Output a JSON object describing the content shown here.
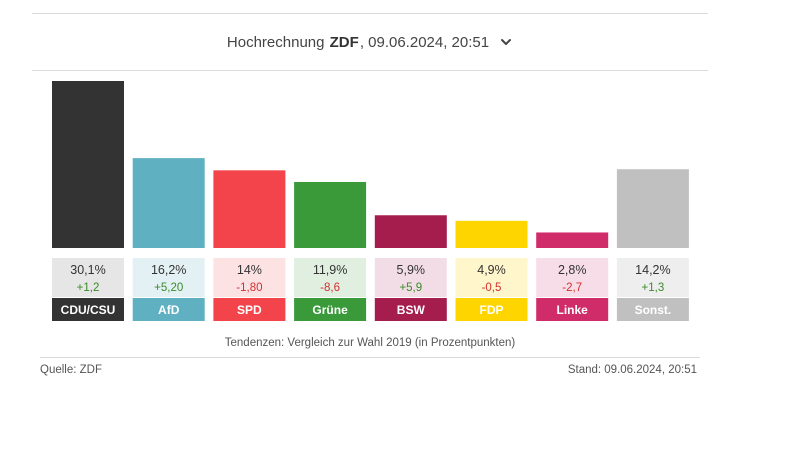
{
  "header": {
    "prefix": "Hochrechnung ",
    "source": "ZDF",
    "suffix": ", 09.06.2024, 20:51",
    "dropdown_icon": "chevron-down-icon"
  },
  "chart_data": {
    "type": "bar",
    "categories": [
      "CDU/CSU",
      "AfD",
      "SPD",
      "Grüne",
      "BSW",
      "FDP",
      "Linke",
      "Sonst."
    ],
    "values": [
      30.1,
      16.2,
      14,
      11.9,
      5.9,
      4.9,
      2.8,
      14.2
    ],
    "value_labels": [
      "30,1%",
      "16,2%",
      "14%",
      "11,9%",
      "5,9%",
      "4,9%",
      "2,8%",
      "14,2%"
    ],
    "changes": [
      1.2,
      5.2,
      -1.8,
      -8.6,
      5.9,
      -0.5,
      -2.7,
      1.3
    ],
    "change_labels": [
      "+1,2",
      "+5,20",
      "-1,80",
      "-8,6",
      "+5,9",
      "-0,5",
      "-2,7",
      "+1,3"
    ],
    "colors": [
      "#333333",
      "#5fb0c0",
      "#f2444a",
      "#3a9a3a",
      "#a51d4d",
      "#ffd500",
      "#d12c6a",
      "#c0c0c0"
    ],
    "tint_colors": [
      "#e6e6e6",
      "#e4f1f4",
      "#fde2e3",
      "#e1efe0",
      "#f2dde6",
      "#fff6cc",
      "#f7dde7",
      "#eeeeee"
    ],
    "change_colors": {
      "positive": "#3a8a2a",
      "negative": "#d32f2f"
    },
    "ylim": [
      0,
      30.1
    ]
  },
  "caption": "Tendenzen: Vergleich zur Wahl 2019 (in Prozentpunkten)",
  "footer": {
    "source": "Quelle: ZDF",
    "timestamp": "Stand: 09.06.2024, 20:51"
  }
}
